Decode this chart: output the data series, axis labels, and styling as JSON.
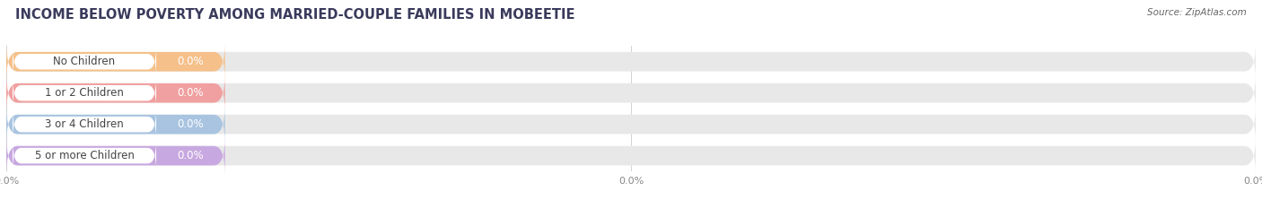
{
  "title": "INCOME BELOW POVERTY AMONG MARRIED-COUPLE FAMILIES IN MOBEETIE",
  "source": "Source: ZipAtlas.com",
  "categories": [
    "No Children",
    "1 or 2 Children",
    "3 or 4 Children",
    "5 or more Children"
  ],
  "values": [
    0.0,
    0.0,
    0.0,
    0.0
  ],
  "bar_colors": [
    "#f5c08a",
    "#f0a0a0",
    "#a8c4e0",
    "#c8a8e0"
  ],
  "background_color": "#ffffff",
  "bar_bg_color": "#e8e8e8",
  "figsize": [
    14.06,
    2.33
  ],
  "title_fontsize": 10.5,
  "bar_height": 0.62,
  "label_fontsize": 8.5,
  "value_fontsize": 8.5,
  "title_color": "#3a3a5c",
  "source_color": "#666666",
  "tick_color": "#888888"
}
